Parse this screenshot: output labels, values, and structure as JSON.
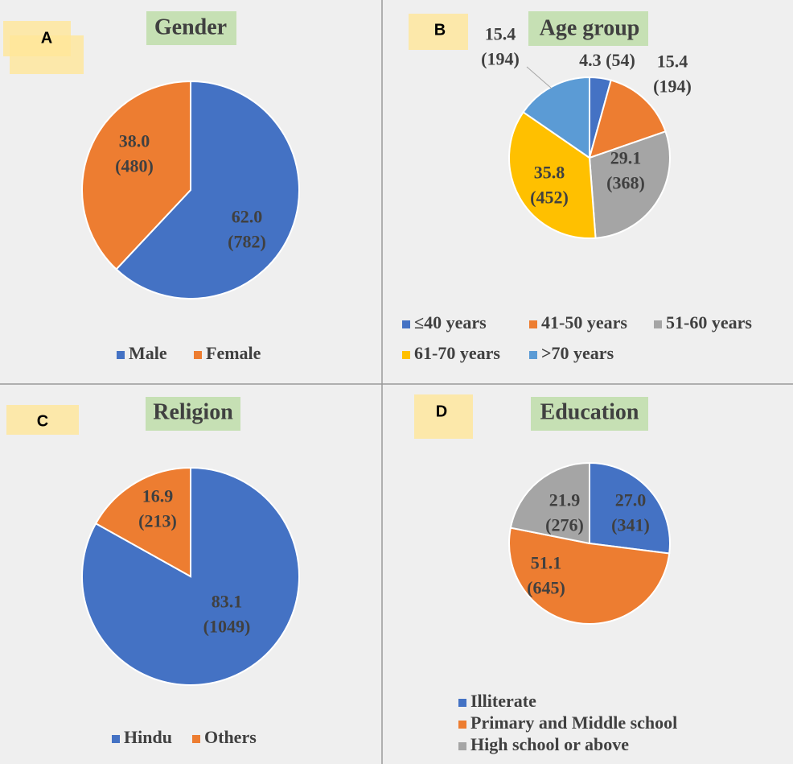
{
  "chart_data": [
    {
      "type": "pie",
      "panel": "A",
      "title": "Gender",
      "categories": [
        "Male",
        "Female"
      ],
      "values": [
        62.0,
        38.0
      ],
      "value_labels": [
        [
          "62.0",
          "(782)"
        ],
        [
          "38.0",
          "(480)"
        ]
      ],
      "colors": [
        "#4472c4",
        "#ed7d31"
      ]
    },
    {
      "type": "pie",
      "panel": "B",
      "title": "Age group",
      "categories": [
        "≤40 years",
        "41-50 years",
        "51-60 years",
        "61-70 years",
        ">70 years"
      ],
      "values": [
        4.3,
        15.4,
        29.1,
        35.8,
        15.4
      ],
      "value_labels": [
        [
          "4.3 (54)"
        ],
        [
          "15.4",
          "(194)"
        ],
        [
          "29.1",
          "(368)"
        ],
        [
          "35.8",
          "(452)"
        ],
        [
          "15.4",
          "(194)"
        ]
      ],
      "colors": [
        "#4472c4",
        "#ed7d31",
        "#a5a5a5",
        "#ffc000",
        "#5b9bd5"
      ]
    },
    {
      "type": "pie",
      "panel": "C",
      "title": "Religion",
      "categories": [
        "Hindu",
        "Others"
      ],
      "values": [
        83.1,
        16.9
      ],
      "value_labels": [
        [
          "83.1",
          "(1049)"
        ],
        [
          "16.9",
          "(213)"
        ]
      ],
      "colors": [
        "#4472c4",
        "#ed7d31"
      ]
    },
    {
      "type": "pie",
      "panel": "D",
      "title": "Education",
      "categories": [
        "Illiterate",
        "Primary and Middle school",
        "High school or above"
      ],
      "values": [
        27.0,
        51.1,
        21.9
      ],
      "value_labels": [
        [
          "27.0",
          "(341)"
        ],
        [
          "51.1",
          "(645)"
        ],
        [
          "21.9",
          "(276)"
        ]
      ],
      "colors": [
        "#4472c4",
        "#ed7d31",
        "#a5a5a5"
      ]
    }
  ]
}
